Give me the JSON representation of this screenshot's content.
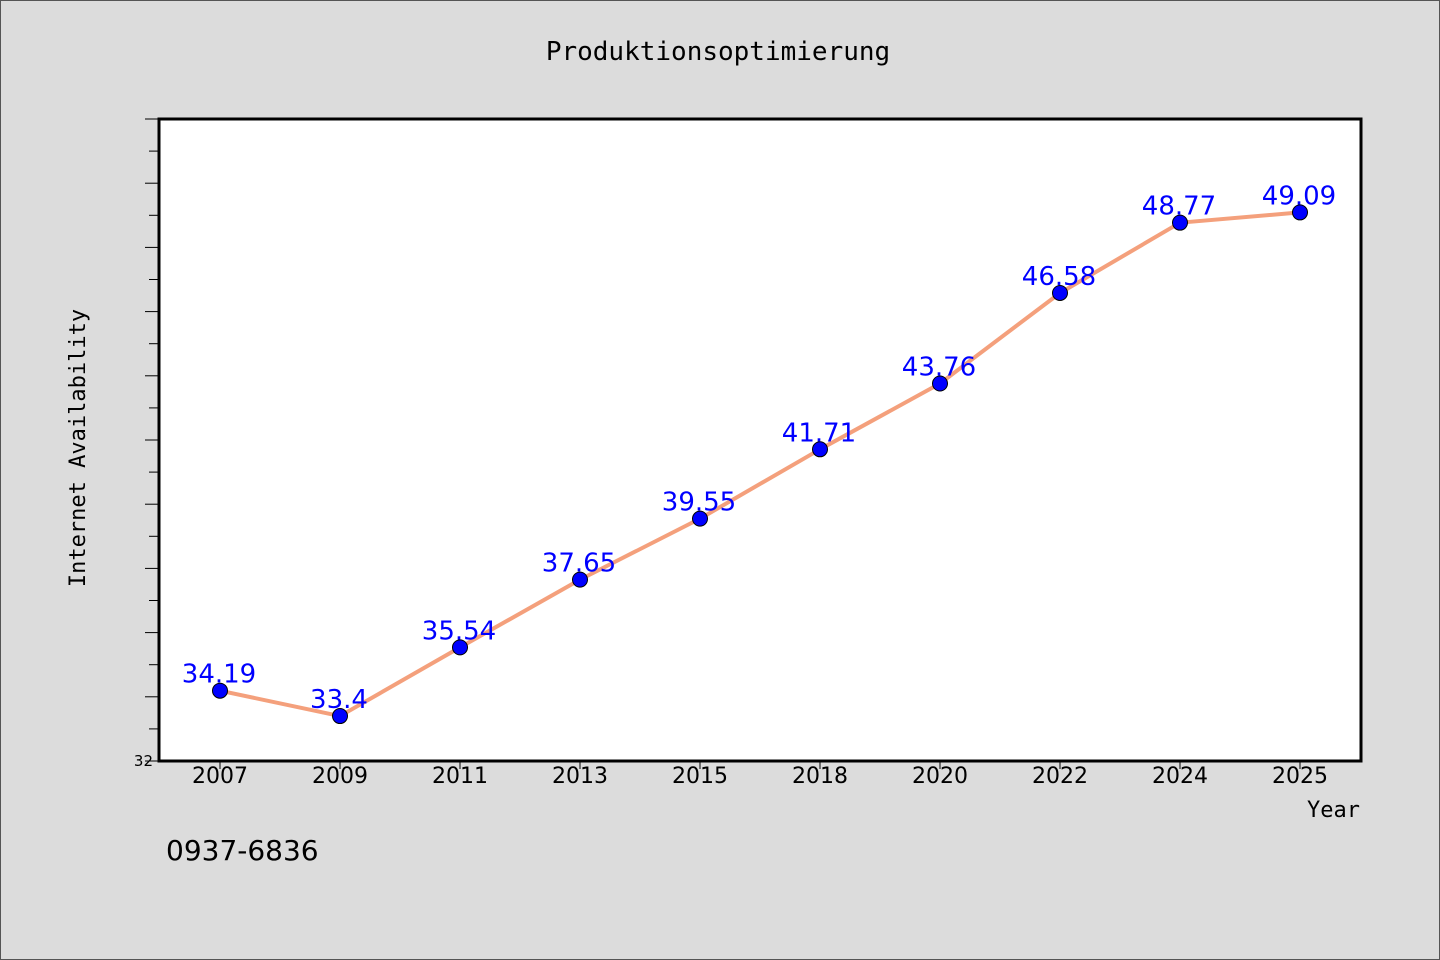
{
  "chart_data": {
    "type": "line",
    "title": "Produktionsoptimierung",
    "xlabel": "Year",
    "ylabel": "Internet Availability",
    "x": [
      "2007",
      "2009",
      "2011",
      "2013",
      "2015",
      "2018",
      "2020",
      "2022",
      "2024",
      "2025"
    ],
    "series": [
      {
        "values": [
          34.19,
          33.4,
          35.54,
          37.65,
          39.55,
          41.71,
          43.76,
          46.58,
          48.77,
          49.09
        ],
        "labels": [
          "34.19",
          "33.4",
          "35.54",
          "37.65",
          "39.55",
          "41.71",
          "43.76",
          "46.58",
          "48.77",
          "49.09"
        ]
      }
    ],
    "ylim": [
      32,
      52
    ],
    "y_tick_labels": [
      "32"
    ],
    "line_color": "#f4a07c",
    "marker_color": "#0000ff",
    "label_color": "#0000ff",
    "grid": false
  },
  "footnote": "0937-6836"
}
